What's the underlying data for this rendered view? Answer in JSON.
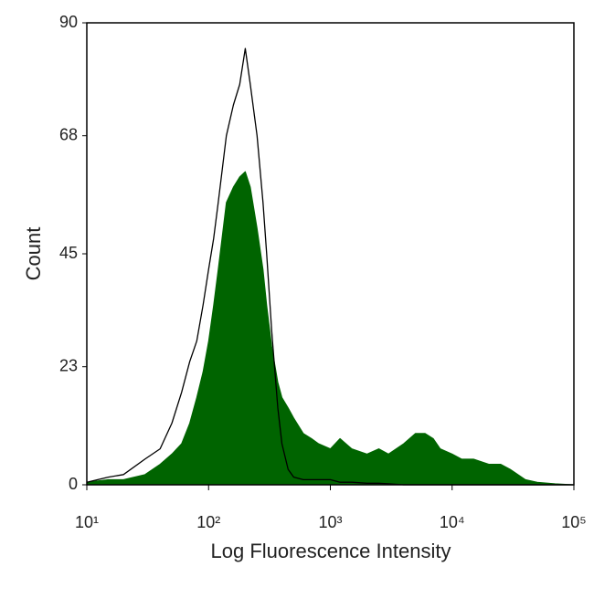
{
  "chart_data": {
    "type": "area",
    "xlabel": "Log Fluorescence Intensity",
    "ylabel": "Count",
    "log_x": true,
    "xlim": [
      10,
      100000
    ],
    "xticks": [
      {
        "value": 10,
        "label": "10¹"
      },
      {
        "value": 100,
        "label": "10²"
      },
      {
        "value": 1000,
        "label": "10³"
      },
      {
        "value": 10000,
        "label": "10⁴"
      },
      {
        "value": 100000,
        "label": "10⁵"
      }
    ],
    "ylim": [
      0,
      90
    ],
    "yticks": [
      0,
      23,
      45,
      68,
      90
    ],
    "x": [
      10,
      15,
      20,
      30,
      40,
      50,
      60,
      70,
      80,
      90,
      100,
      110,
      120,
      140,
      160,
      180,
      200,
      220,
      250,
      280,
      300,
      330,
      370,
      400,
      450,
      500,
      600,
      700,
      800,
      1000,
      1200,
      1500,
      2000,
      2500,
      3000,
      4000,
      5000,
      6000,
      7000,
      8000,
      10000,
      12000,
      15000,
      20000,
      25000,
      30000,
      40000,
      50000,
      70000,
      100000
    ],
    "series": [
      {
        "color": "#006400",
        "filled": true,
        "values": [
          0.5,
          1,
          1,
          2,
          4,
          6,
          8,
          12,
          17,
          22,
          28,
          35,
          42,
          55,
          58,
          60,
          61,
          58,
          50,
          42,
          35,
          27,
          20,
          17,
          15,
          13,
          10,
          9,
          8,
          7,
          9,
          7,
          6,
          7,
          6,
          8,
          10,
          10,
          9,
          7,
          6,
          5,
          5,
          4,
          4,
          3,
          1,
          0.5,
          0.2,
          0
        ]
      },
      {
        "color": "#000000",
        "filled": false,
        "values": [
          0.5,
          1.5,
          2,
          5,
          7,
          12,
          18,
          24,
          28,
          35,
          42,
          48,
          55,
          68,
          74,
          78,
          85,
          78,
          68,
          55,
          45,
          30,
          15,
          8,
          3,
          1.5,
          1,
          1,
          1,
          1,
          0.5,
          0.5,
          0.3,
          0.3,
          0.2,
          0,
          0,
          0,
          0,
          0,
          0,
          0,
          0,
          0,
          0,
          0,
          0,
          0,
          0,
          0
        ]
      }
    ]
  }
}
